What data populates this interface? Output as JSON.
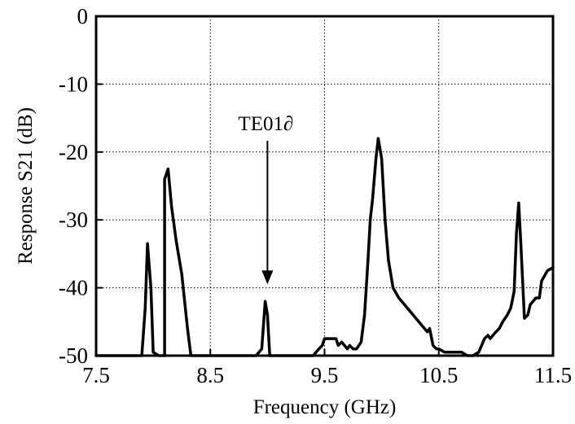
{
  "chart_data": {
    "type": "line",
    "xlabel": "Frequency (GHz)",
    "ylabel": "Response S21 (dB)",
    "xlim": [
      7.5,
      11.5
    ],
    "ylim": [
      -50,
      0
    ],
    "xticks": [
      "7.5",
      "8.5",
      "9.5",
      "10.5",
      "11.5"
    ],
    "yticks": [
      "0",
      "-10",
      "-20",
      "-30",
      "-40",
      "-50"
    ],
    "grid": true,
    "line_color": "#000000",
    "annotation": {
      "text": "TE01∂",
      "x": 9.0,
      "y": -39.5
    },
    "series": [
      {
        "x": [
          7.5,
          7.9,
          7.93,
          7.95,
          7.98,
          8.0,
          8.05,
          8.1,
          8.1,
          8.13,
          8.16,
          8.2,
          8.25,
          8.3,
          8.33,
          8.35,
          8.4,
          8.5,
          8.6,
          8.7,
          8.8,
          8.9,
          8.95,
          8.98,
          9.0,
          9.02,
          9.05,
          9.1,
          9.2,
          9.3,
          9.4,
          9.45,
          9.48,
          9.5,
          9.55,
          9.6,
          9.62,
          9.65,
          9.7,
          9.72,
          9.75,
          9.78,
          9.82,
          9.85,
          9.88,
          9.9,
          9.92,
          9.95,
          9.97,
          10.0,
          10.03,
          10.06,
          10.1,
          10.15,
          10.2,
          10.25,
          10.3,
          10.35,
          10.4,
          10.42,
          10.45,
          10.48,
          10.5,
          10.55,
          10.6,
          10.65,
          10.7,
          10.75,
          10.8,
          10.85,
          10.9,
          10.93,
          10.95,
          11.0,
          11.03,
          11.06,
          11.1,
          11.13,
          11.16,
          11.18,
          11.2,
          11.22,
          11.25,
          11.28,
          11.3,
          11.35,
          11.38,
          11.4,
          11.45,
          11.5
        ],
        "y": [
          -50,
          -50,
          -43,
          -33.5,
          -40,
          -49.5,
          -50,
          -50,
          -24,
          -22.5,
          -28,
          -33,
          -38,
          -46,
          -50,
          -50,
          -50,
          -50,
          -50,
          -50,
          -50,
          -50,
          -49,
          -42,
          -44,
          -50,
          -50,
          -50,
          -50,
          -50,
          -50,
          -49,
          -48.5,
          -47.5,
          -47.5,
          -47.5,
          -48.5,
          -48,
          -49,
          -48.5,
          -49,
          -49,
          -48,
          -44,
          -36,
          -30,
          -27,
          -21,
          -18,
          -21,
          -30,
          -36,
          -40,
          -41.5,
          -42.5,
          -43.5,
          -44.5,
          -45.5,
          -46.5,
          -46,
          -48.5,
          -49,
          -49,
          -49.5,
          -49.5,
          -49.5,
          -49.5,
          -50,
          -50,
          -49.5,
          -47.5,
          -47,
          -47.5,
          -46.5,
          -46,
          -45,
          -44,
          -43,
          -40.5,
          -32,
          -27.5,
          -34,
          -44.5,
          -44,
          -42.5,
          -41.5,
          -41.5,
          -39,
          -37.5,
          -37
        ]
      }
    ]
  }
}
